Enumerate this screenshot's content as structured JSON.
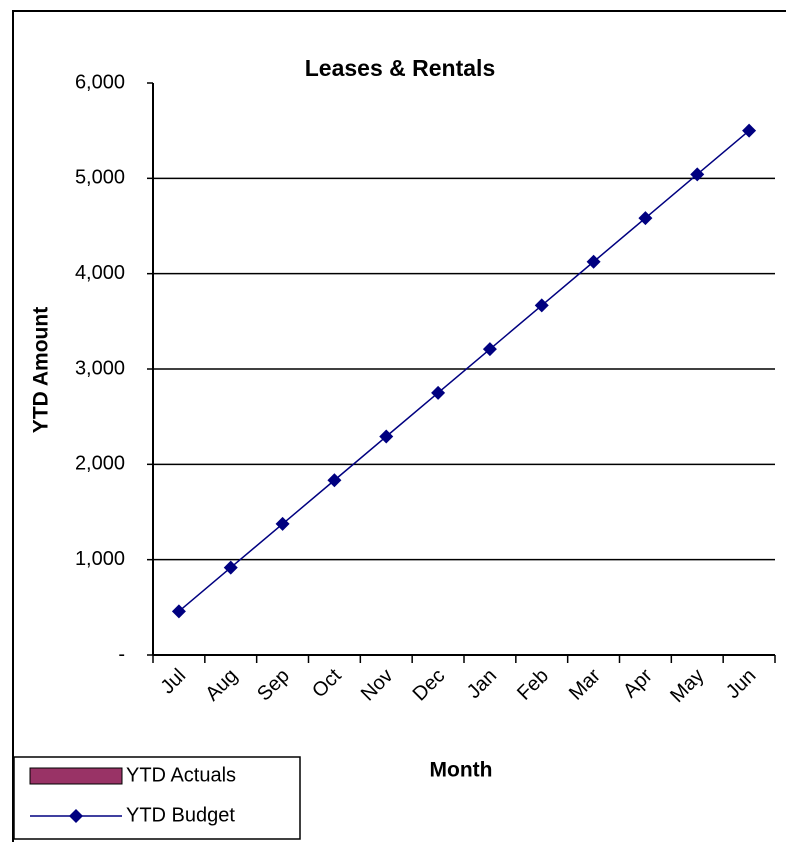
{
  "chart_data": {
    "type": "line",
    "title": "Leases & Rentals",
    "x_label": "Month",
    "y_label": "YTD Amount",
    "categories": [
      "Jul",
      "Aug",
      "Sep",
      "Oct",
      "Nov",
      "Dec",
      "Jan",
      "Feb",
      "Mar",
      "Apr",
      "May",
      "Jun"
    ],
    "series": [
      {
        "name": "YTD Actuals",
        "type": "bar",
        "color": "#993366",
        "values": [
          null,
          null,
          null,
          null,
          null,
          null,
          null,
          null,
          null,
          null,
          null,
          null
        ]
      },
      {
        "name": "YTD Budget",
        "type": "line",
        "color": "#000080",
        "values": [
          458,
          917,
          1375,
          1833,
          2292,
          2750,
          3208,
          3667,
          4125,
          4583,
          5042,
          5500
        ]
      }
    ],
    "ylim": [
      0,
      6000
    ],
    "yticks": [
      {
        "value": 0,
        "label": "-"
      },
      {
        "value": 1000,
        "label": "1,000"
      },
      {
        "value": 2000,
        "label": "2,000"
      },
      {
        "value": 3000,
        "label": "3,000"
      },
      {
        "value": 4000,
        "label": "4,000"
      },
      {
        "value": 5000,
        "label": "5,000"
      },
      {
        "value": 6000,
        "label": "6,000"
      }
    ],
    "grid": true,
    "legend": "bottom-left"
  }
}
